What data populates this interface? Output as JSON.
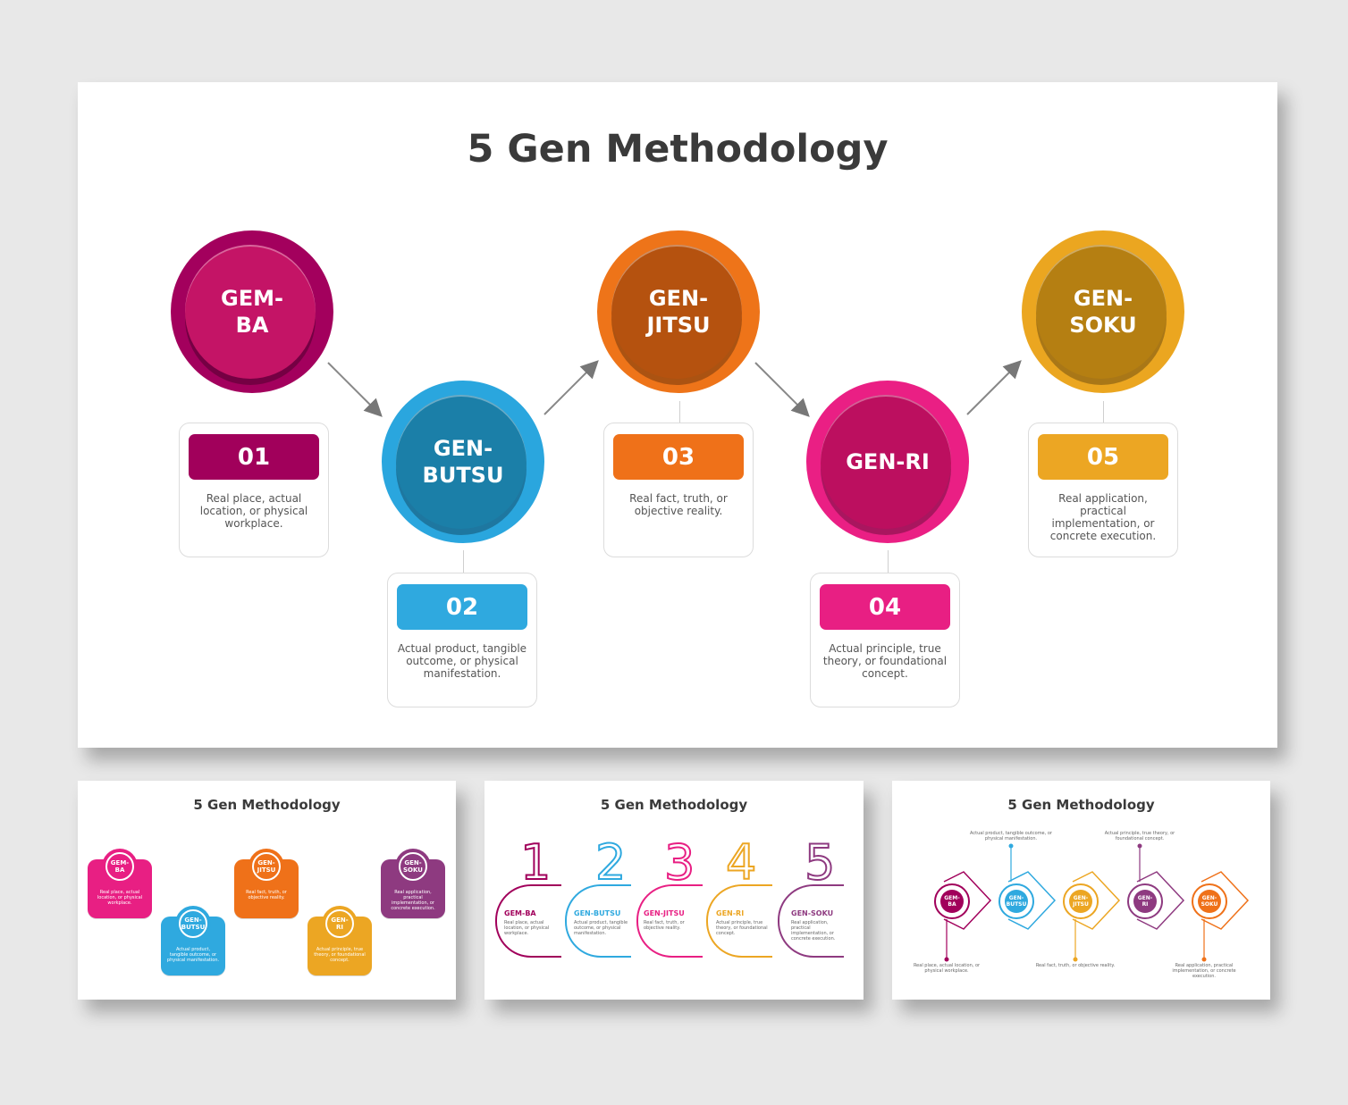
{
  "main_slide": {
    "title": "5 Gen Methodology",
    "steps": [
      {
        "name": "GEM-\nBA",
        "number": "01",
        "description": "Real place, actual location, or physical workplace.",
        "color": "#a1005b",
        "outer": "#a3005d",
        "inner": "#c41466"
      },
      {
        "name": "GEN-\nBUTSU",
        "number": "02",
        "description": "Actual product, tangible outcome, or physical manifestation.",
        "color": "#2fa9df",
        "outer": "#2aa6de",
        "inner": "#1b7fa8"
      },
      {
        "name": "GEN-\nJITSU",
        "number": "03",
        "description": "Real fact, truth, or objective reality.",
        "color": "#ef7119",
        "outer": "#ee7419",
        "inner": "#b5520f"
      },
      {
        "name": "GEN-RI",
        "number": "04",
        "description": "Actual principle, true theory, or foundational concept.",
        "color": "#e81f83",
        "outer": "#ea1f84",
        "inner": "#bc0f5f"
      },
      {
        "name": "GEN-\nSOKU",
        "number": "05",
        "description": "Real application, practical implementation, or concrete execution.",
        "color": "#eca623",
        "outer": "#eba620",
        "inner": "#b57f12"
      }
    ]
  },
  "thumb1": {
    "title": "5 Gen Methodology",
    "cards": [
      {
        "name": "GEM-\nBA",
        "description": "Real place, actual location, or physical workplace.",
        "color": "#e81f83"
      },
      {
        "name": "GEN-\nBUTSU",
        "description": "Actual product, tangible outcome, or physical manifestation.",
        "color": "#2fa9df"
      },
      {
        "name": "GEN-\nJITSU",
        "description": "Real fact, truth, or objective reality.",
        "color": "#ef7119"
      },
      {
        "name": "GEN-\nRI",
        "description": "Actual principle, true theory, or foundational concept.",
        "color": "#eca623"
      },
      {
        "name": "GEN-\nSOKU",
        "description": "Real application, practical implementation, or concrete execution.",
        "color": "#8e3a80"
      }
    ]
  },
  "thumb2": {
    "title": "5 Gen Methodology",
    "items": [
      {
        "digit": "1",
        "name": "GEM-BA",
        "description": "Real place, actual location, or physical workplace.",
        "color": "#a1005b"
      },
      {
        "digit": "2",
        "name": "GEN-BUTSU",
        "description": "Actual product, tangible outcome, or physical manifestation.",
        "color": "#2fa9df"
      },
      {
        "digit": "3",
        "name": "GEN-JITSU",
        "description": "Real fact, truth, or objective reality.",
        "color": "#e81f83"
      },
      {
        "digit": "4",
        "name": "GEN-RI",
        "description": "Actual principle, true theory, or foundational concept.",
        "color": "#eca623"
      },
      {
        "digit": "5",
        "name": "GEN-SOKU",
        "description": "Real application, practical implementation, or concrete execution.",
        "color": "#8e3a80"
      }
    ]
  },
  "thumb3": {
    "title": "5 Gen Methodology",
    "items": [
      {
        "name": "GEM-\nBA",
        "description": "Real place, actual location, or physical workplace.",
        "color": "#a1005b"
      },
      {
        "name": "GEN-\nBUTSU",
        "description": "Actual product, tangible outcome, or physical manifestation.",
        "color": "#2fa9df"
      },
      {
        "name": "GEN-\nJITSU",
        "description": "Real fact, truth, or objective reality.",
        "color": "#eca623"
      },
      {
        "name": "GEN-\nRI",
        "description": "Actual principle, true theory, or foundational concept.",
        "color": "#8e3a80"
      },
      {
        "name": "GEN-\nSOKU",
        "description": "Real application, practical implementation, or concrete execution.",
        "color": "#ef7119"
      }
    ]
  }
}
